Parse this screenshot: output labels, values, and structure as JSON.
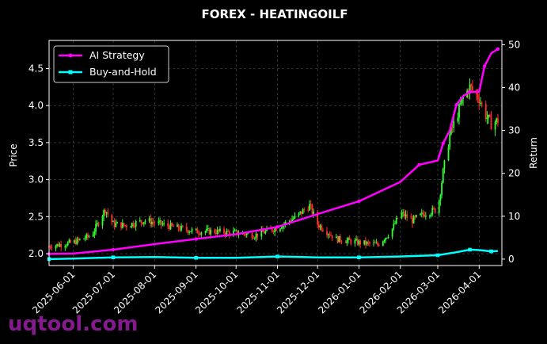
{
  "chart_data": {
    "type": "line",
    "title": "FOREX - HEATINGOILF",
    "ylabel_left": "Price",
    "ylabel_right": "Return",
    "ylim_left": [
      1.84,
      4.88
    ],
    "ylim_right": [
      -1.5,
      51
    ],
    "yticks_left": [
      "2.0",
      "2.5",
      "3.0",
      "3.5",
      "4.0",
      "4.5"
    ],
    "yticks_right": [
      "0",
      "10",
      "20",
      "30",
      "40",
      "50"
    ],
    "xticks": [
      "2025-06-01",
      "2025-07-01",
      "2025-08-01",
      "2025-09-01",
      "2025-10-01",
      "2025-11-01",
      "2025-12-01",
      "2026-01-01",
      "2026-02-01",
      "2026-03-01",
      "2026-04-01"
    ],
    "grid": true,
    "legend_position": "top-left",
    "price_series": {
      "kind": "candlestick",
      "up_color": "#32ff32",
      "down_color": "#ff3030",
      "x": [
        "2025-05-14",
        "2025-06-01",
        "2025-06-15",
        "2025-06-25",
        "2025-07-01",
        "2025-07-10",
        "2025-07-25",
        "2025-08-01",
        "2025-08-15",
        "2025-09-01",
        "2025-09-15",
        "2025-10-01",
        "2025-10-15",
        "2025-11-01",
        "2025-11-15",
        "2025-11-25",
        "2025-12-01",
        "2025-12-15",
        "2026-01-01",
        "2026-01-15",
        "2026-01-25",
        "2026-02-01",
        "2026-02-10",
        "2026-02-20",
        "2026-03-01",
        "2026-03-05",
        "2026-03-10",
        "2026-03-20",
        "2026-03-25",
        "2026-04-01",
        "2026-04-05",
        "2026-04-10",
        "2026-04-15"
      ],
      "close": [
        2.1,
        2.15,
        2.25,
        2.6,
        2.4,
        2.38,
        2.45,
        2.42,
        2.36,
        2.3,
        2.3,
        2.28,
        2.25,
        2.35,
        2.5,
        2.65,
        2.4,
        2.2,
        2.15,
        2.12,
        2.3,
        2.55,
        2.45,
        2.55,
        2.6,
        3.1,
        3.6,
        4.1,
        4.25,
        4.1,
        3.9,
        3.75,
        3.8
      ]
    },
    "series": [
      {
        "name": "AI Strategy",
        "color": "#ff00ff",
        "x": [
          "2025-05-14",
          "2025-06-01",
          "2025-07-01",
          "2025-08-01",
          "2025-09-01",
          "2025-10-01",
          "2025-11-01",
          "2025-12-01",
          "2026-01-01",
          "2026-02-01",
          "2026-02-15",
          "2026-03-01",
          "2026-03-05",
          "2026-03-10",
          "2026-03-15",
          "2026-03-20",
          "2026-03-25",
          "2026-04-01",
          "2026-04-05",
          "2026-04-10",
          "2026-04-15"
        ],
        "values": [
          1.2,
          1.3,
          2.2,
          3.5,
          4.7,
          5.8,
          7.5,
          10.5,
          13.5,
          18,
          22,
          23,
          27,
          30,
          36,
          38,
          39,
          39,
          45,
          48,
          49
        ]
      },
      {
        "name": "Buy-and-Hold",
        "color": "#00ffff",
        "x": [
          "2025-05-14",
          "2025-06-01",
          "2025-07-01",
          "2025-08-01",
          "2025-09-01",
          "2025-10-01",
          "2025-11-01",
          "2025-12-01",
          "2026-01-01",
          "2026-02-01",
          "2026-03-01",
          "2026-03-15",
          "2026-03-25",
          "2026-04-01",
          "2026-04-10",
          "2026-04-15"
        ],
        "values": [
          0,
          0.1,
          0.4,
          0.5,
          0.3,
          0.3,
          0.6,
          0.4,
          0.4,
          0.6,
          0.9,
          1.6,
          2.2,
          2.1,
          1.8,
          1.9
        ]
      }
    ]
  },
  "watermark": "uqtool.com"
}
